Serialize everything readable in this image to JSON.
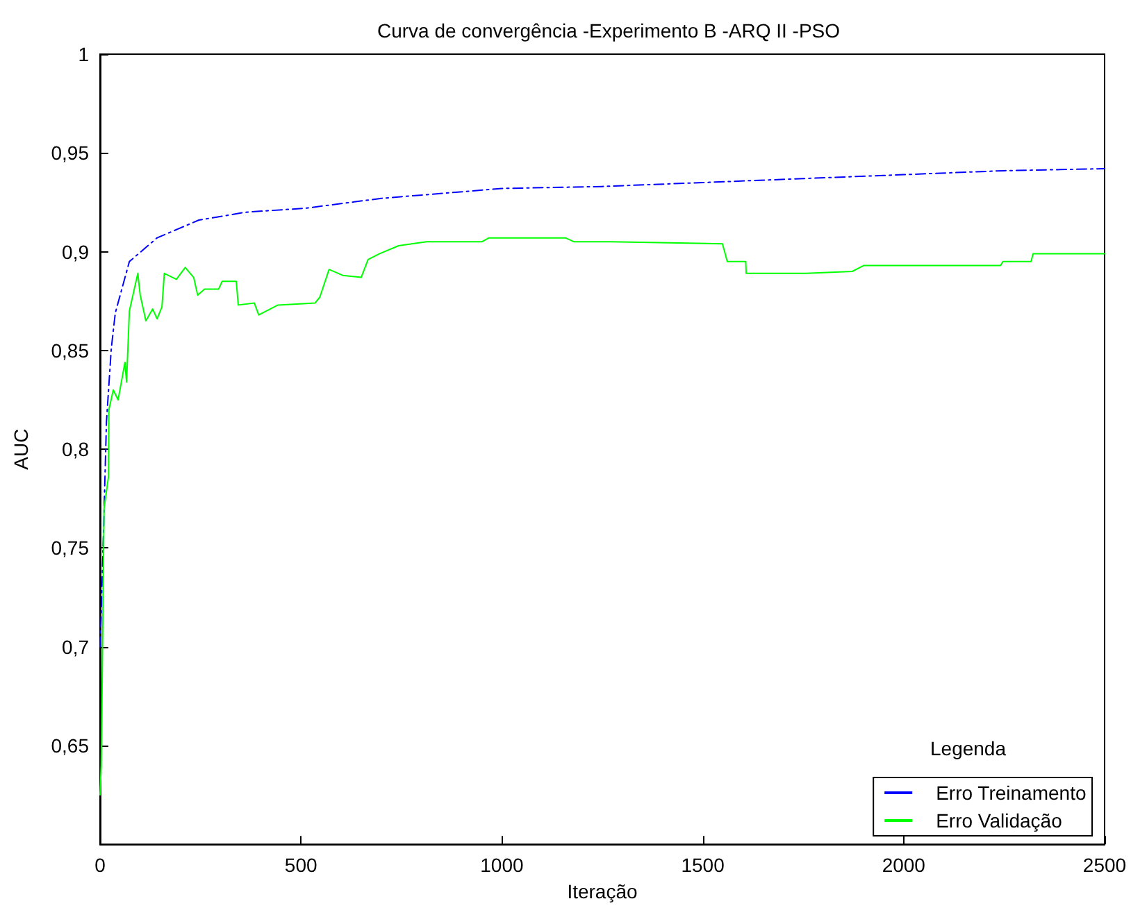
{
  "chart_data": {
    "type": "line",
    "title": "Curva de convergência -Experimento B -ARQ II -PSO",
    "xlabel": "Iteração",
    "ylabel": "AUC",
    "legend_title": "Legenda",
    "legend": "bottom right",
    "grid": false,
    "marker": "none",
    "xlim": [
      0,
      2500
    ],
    "xticks": [
      0,
      500,
      1000,
      1500,
      2000,
      2500
    ],
    "ylim": [
      0.6,
      1
    ],
    "yticks": [
      {
        "value": 0.65,
        "label": "0,65"
      },
      {
        "value": 0.7,
        "label": "0,7"
      },
      {
        "value": 0.75,
        "label": "0,75"
      },
      {
        "value": 0.8,
        "label": "0,8"
      },
      {
        "value": 0.85,
        "label": "0,85"
      },
      {
        "value": 0.9,
        "label": "0,9"
      },
      {
        "value": 0.95,
        "label": "0,95"
      },
      {
        "value": 1,
        "label": "1"
      }
    ],
    "series": [
      {
        "name": "Erro Treinamento",
        "color": "#0000ff",
        "line_style": "dashed",
        "x": [
          0,
          3,
          16,
          28,
          38,
          73,
          142,
          246,
          363,
          512,
          700,
          1000,
          1250,
          1500,
          1750,
          2000,
          2250,
          2500
        ],
        "values": [
          0.7,
          0.716,
          0.814,
          0.851,
          0.869,
          0.895,
          0.907,
          0.916,
          0.92,
          0.922,
          0.927,
          0.932,
          0.933,
          0.935,
          0.937,
          0.939,
          0.941,
          0.942
        ]
      },
      {
        "name": "Erro Validação",
        "color": "#00ff00",
        "line_style": "solid",
        "x": [
          0,
          3,
          10,
          21,
          22,
          33,
          45,
          62,
          66,
          73,
          94,
          100,
          114,
          131,
          142,
          154,
          160,
          190,
          212,
          233,
          243,
          260,
          295,
          304,
          339,
          344,
          384,
          395,
          443,
          535,
          547,
          570,
          604,
          650,
          667,
          696,
          743,
          812,
          950,
          968,
          1158,
          1180,
          1272,
          1549,
          1561,
          1607,
          1608,
          1757,
          1872,
          1901,
          2241,
          2247,
          2317,
          2322,
          2500
        ],
        "values": [
          0.625,
          0.64,
          0.77,
          0.786,
          0.82,
          0.83,
          0.825,
          0.844,
          0.834,
          0.87,
          0.889,
          0.878,
          0.865,
          0.871,
          0.866,
          0.872,
          0.889,
          0.886,
          0.892,
          0.887,
          0.878,
          0.881,
          0.881,
          0.885,
          0.885,
          0.873,
          0.874,
          0.868,
          0.873,
          0.874,
          0.877,
          0.891,
          0.888,
          0.887,
          0.896,
          0.899,
          0.903,
          0.905,
          0.905,
          0.907,
          0.907,
          0.905,
          0.905,
          0.904,
          0.895,
          0.895,
          0.889,
          0.889,
          0.89,
          0.893,
          0.893,
          0.895,
          0.895,
          0.899,
          0.899
        ]
      }
    ]
  }
}
